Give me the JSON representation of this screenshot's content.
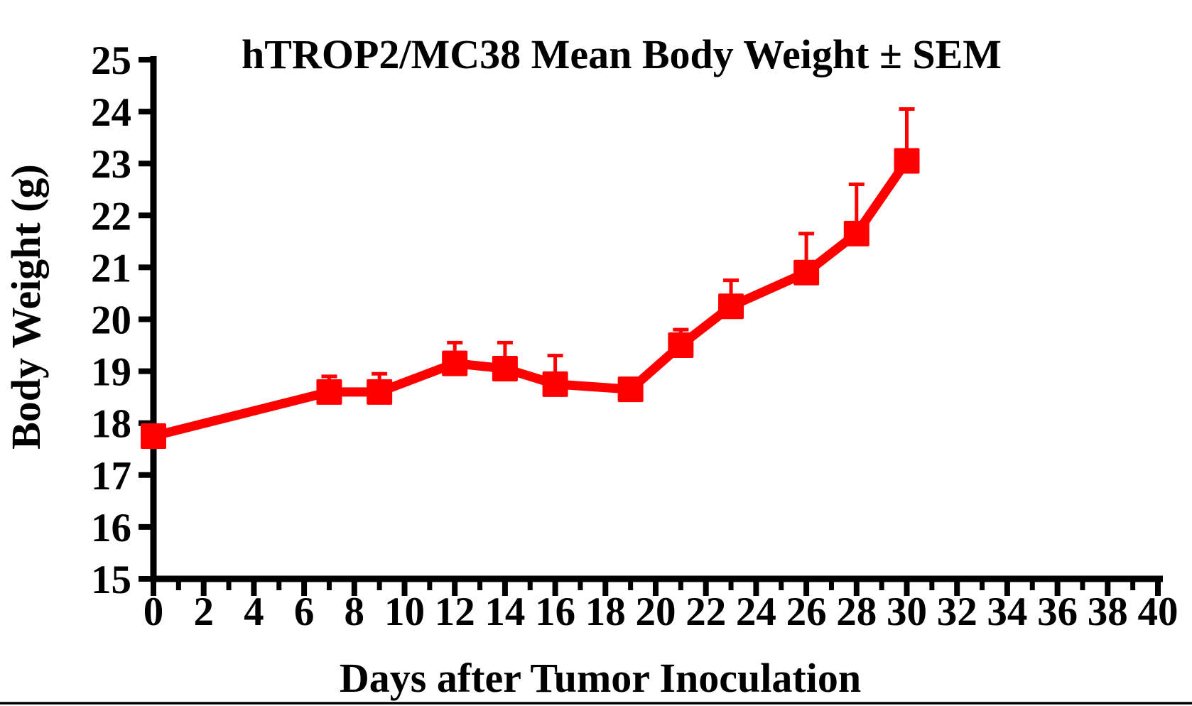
{
  "page": {
    "background": "#ffffff",
    "bottom_rule_color": "#000000"
  },
  "chart_data": {
    "type": "line",
    "title": "hTROP2/MC38 Mean Body Weight ± SEM",
    "xlabel": "Days after Tumor Inoculation",
    "ylabel": "Body Weight (g)",
    "xlim": [
      0,
      40
    ],
    "ylim": [
      15,
      25
    ],
    "x_major_ticks": [
      0,
      2,
      4,
      6,
      8,
      10,
      12,
      14,
      16,
      18,
      20,
      22,
      24,
      26,
      28,
      30,
      32,
      34,
      36,
      38,
      40
    ],
    "x_minor_tick_step": 1,
    "y_ticks": [
      15,
      16,
      17,
      18,
      19,
      20,
      21,
      22,
      23,
      24,
      25
    ],
    "grid": false,
    "legend_position": "none",
    "axis_color": "#000000",
    "series": [
      {
        "name": "hTROP2/MC38 Mean Body Weight",
        "color": "#ff0000",
        "marker": "square",
        "error_bars": "upper-only",
        "x": [
          0,
          7,
          9,
          12,
          14,
          16,
          19,
          21,
          23,
          26,
          28,
          30
        ],
        "mean": [
          17.75,
          18.6,
          18.6,
          19.15,
          19.05,
          18.75,
          18.65,
          19.5,
          20.25,
          20.9,
          21.65,
          23.05
        ],
        "sem": [
          0,
          0.3,
          0.35,
          0.4,
          0.5,
          0.55,
          0,
          0.3,
          0.5,
          0.75,
          0.95,
          1.0
        ]
      }
    ]
  }
}
